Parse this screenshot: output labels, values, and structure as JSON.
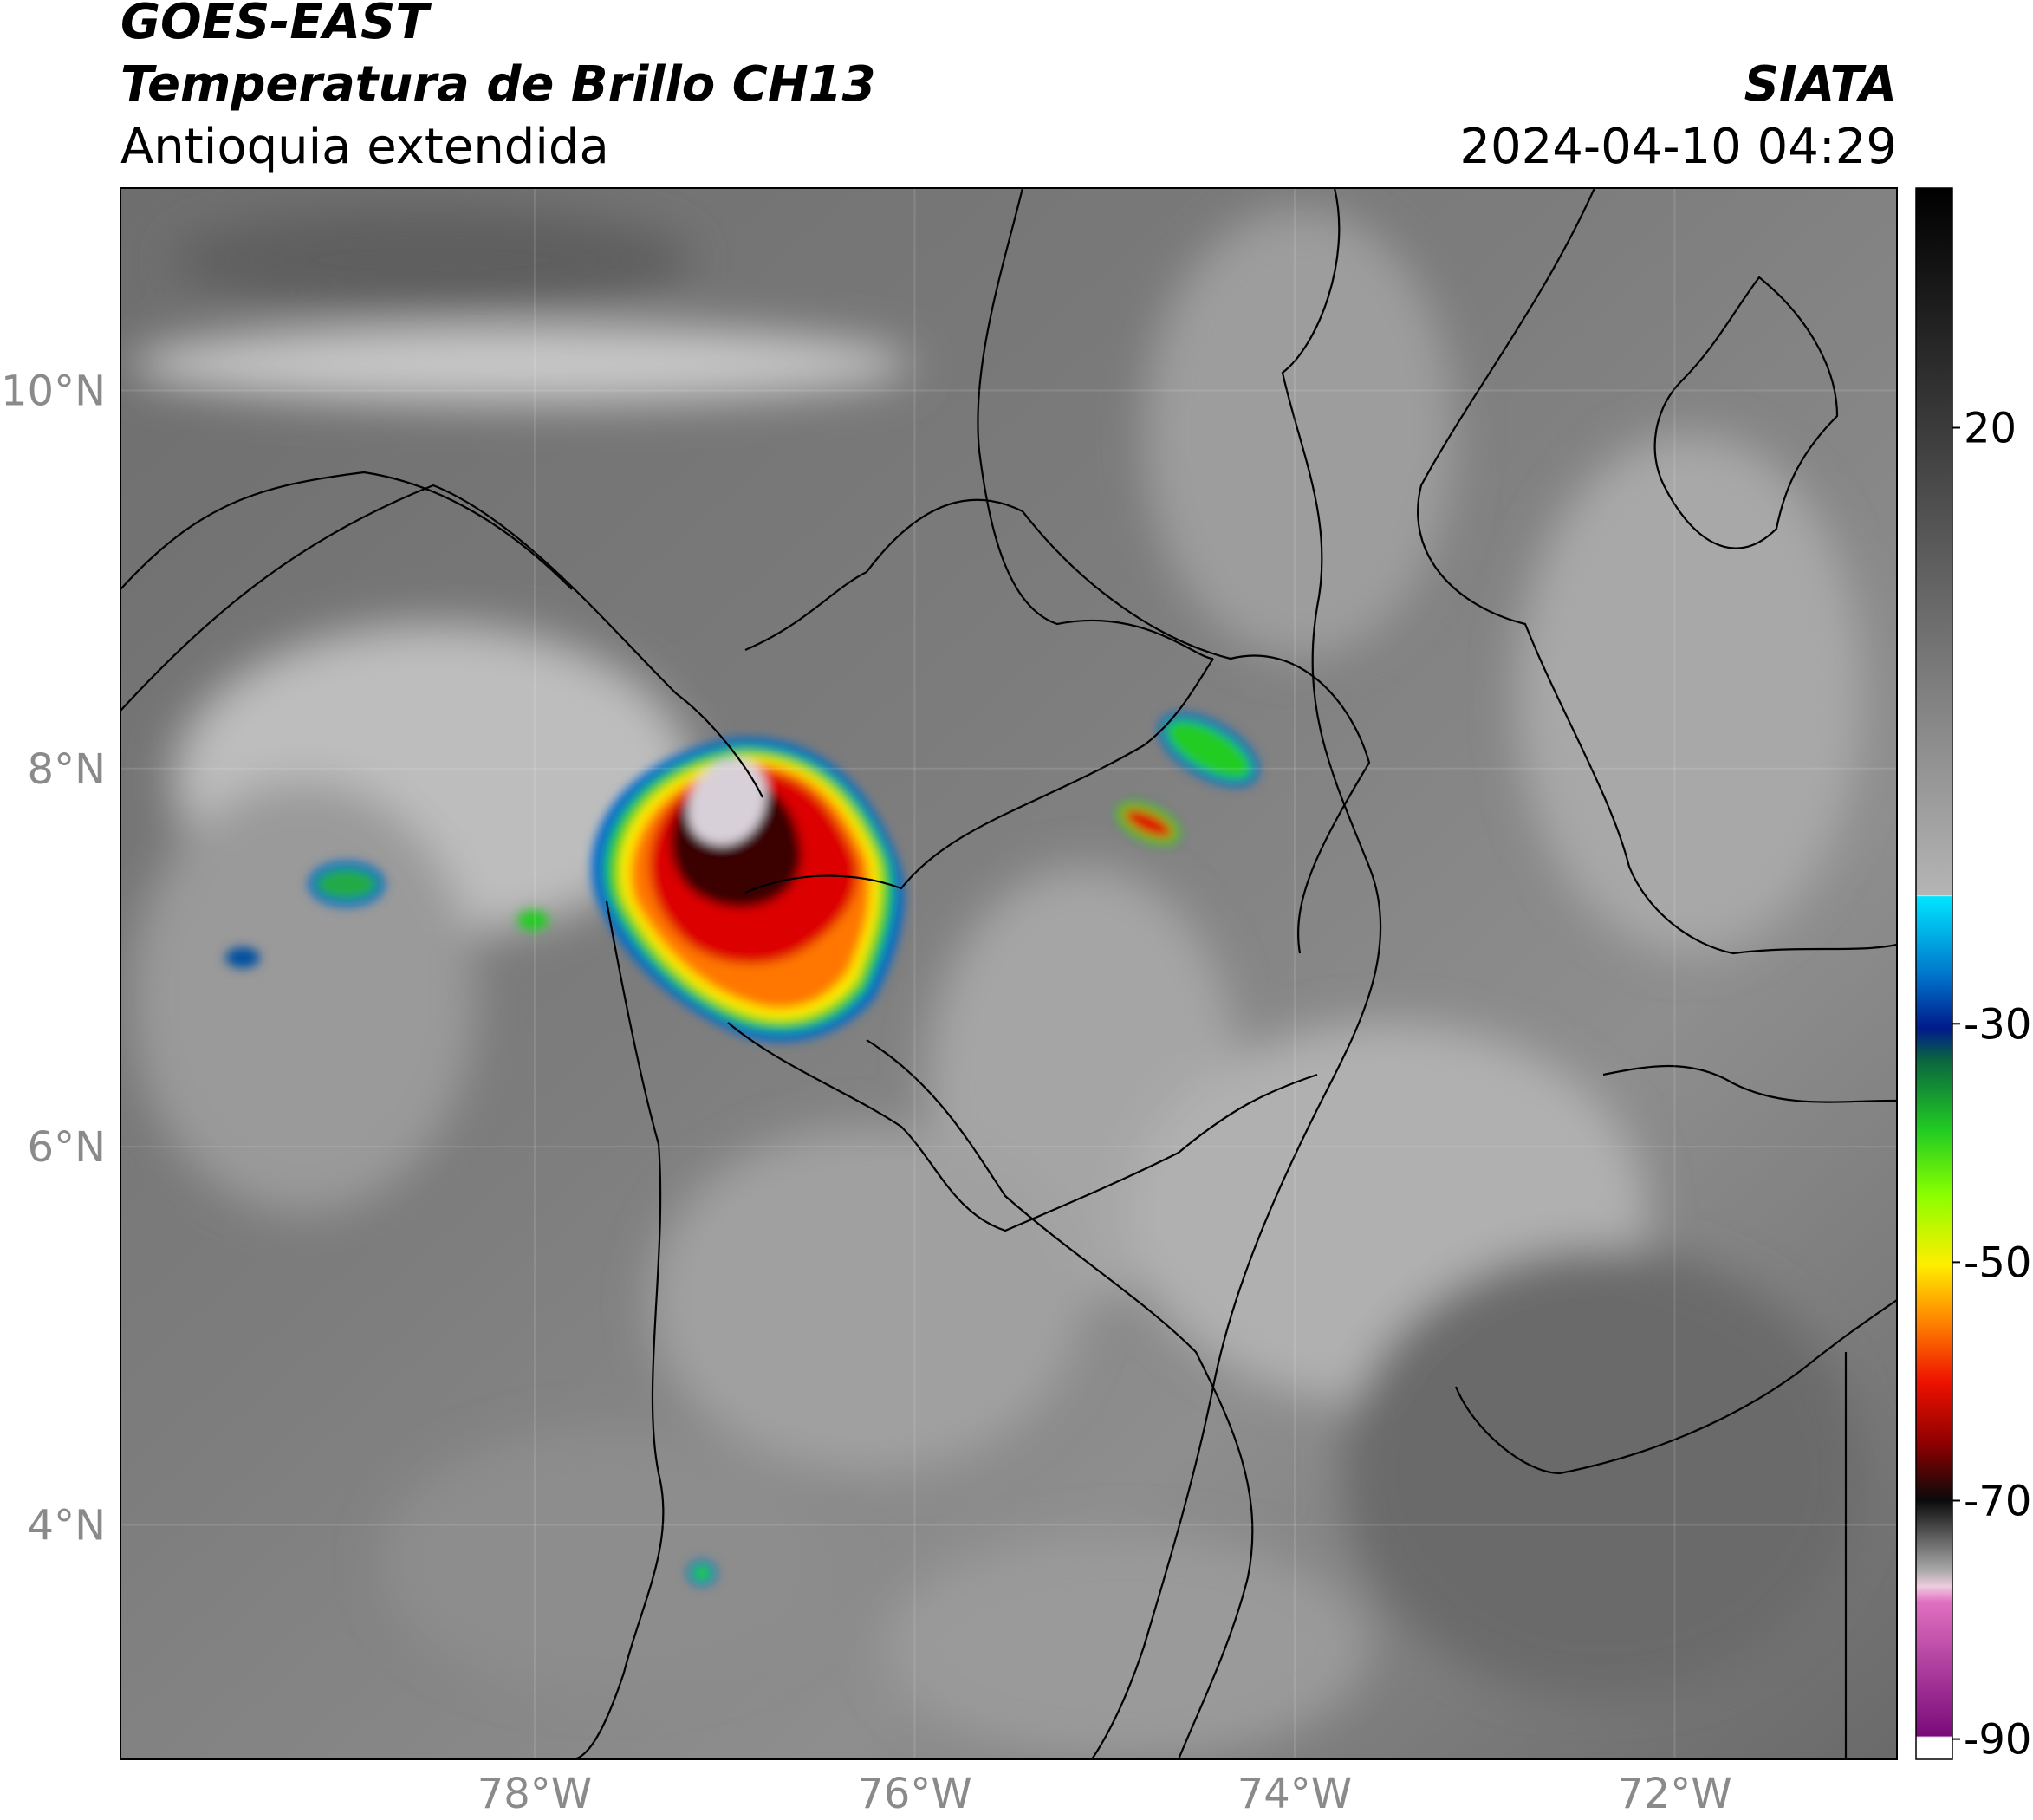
{
  "header": {
    "title": "GOES-EAST",
    "subtitle": "Temperatura de Brillo CH13",
    "region": "Antioquia extendida",
    "source": "SIATA",
    "datetime": "2024-04-10 04:29"
  },
  "map": {
    "xlim": [
      -80.18,
      -70.83
    ],
    "ylim": [
      2.76,
      11.07
    ],
    "grid": true,
    "xticks": [
      {
        "value": -78,
        "label": "78°W"
      },
      {
        "value": -76,
        "label": "76°W"
      },
      {
        "value": -74,
        "label": "74°W"
      },
      {
        "value": -72,
        "label": "72°W"
      }
    ],
    "yticks": [
      {
        "value": 10,
        "label": "10°N"
      },
      {
        "value": 8,
        "label": "8°N"
      },
      {
        "value": 6,
        "label": "6°N"
      },
      {
        "value": 4,
        "label": "4°N"
      }
    ]
  },
  "colorbar": {
    "lim": [
      -91.7,
      40.1
    ],
    "ticks": [
      20,
      -30,
      -50,
      -70,
      -90
    ]
  }
}
